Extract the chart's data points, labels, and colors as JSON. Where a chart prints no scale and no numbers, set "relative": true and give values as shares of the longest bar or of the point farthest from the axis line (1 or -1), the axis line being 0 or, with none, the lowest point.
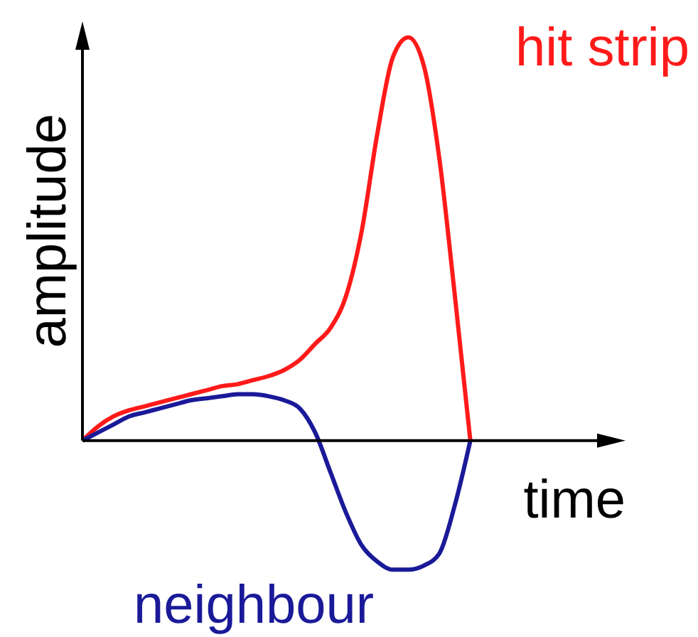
{
  "chart_data": {
    "type": "line",
    "relative": true,
    "xlabel": "time",
    "ylabel": "amplitude",
    "marker": "none",
    "categories": [
      null,
      null,
      null,
      null,
      null,
      null,
      null,
      null,
      null,
      null,
      null,
      null,
      null,
      null,
      null,
      null,
      null,
      null,
      null,
      null,
      null,
      null,
      null,
      null,
      null,
      null,
      null,
      null,
      null,
      null,
      null,
      null,
      null,
      null,
      null,
      null
    ],
    "series": [
      {
        "name": "hit strip",
        "color": "#ff1a1a",
        "values": [
          0,
          0.035,
          0.06,
          0.075,
          0.085,
          0.095,
          0.105,
          0.115,
          0.125,
          0.135,
          0.14,
          0.15,
          0.16,
          0.175,
          0.2,
          0.24,
          0.28,
          0.36,
          0.52,
          0.76,
          0.95,
          1,
          0.93,
          0.7,
          0.36,
          0,
          null,
          null,
          null,
          null,
          null,
          null,
          null,
          null,
          null,
          null
        ]
      },
      {
        "name": "neighbour",
        "color": "#1a1a99",
        "values": [
          0,
          0.02,
          0.04,
          0.06,
          0.07,
          0.08,
          0.09,
          0.1,
          0.105,
          0.11,
          0.115,
          0.115,
          0.11,
          0.1,
          0.08,
          0.02,
          -0.08,
          -0.18,
          -0.26,
          -0.3,
          -0.32,
          -0.32,
          -0.31,
          -0.28,
          -0.16,
          0,
          null,
          null,
          null,
          null,
          null,
          null,
          null,
          null,
          null,
          null
        ]
      }
    ]
  }
}
